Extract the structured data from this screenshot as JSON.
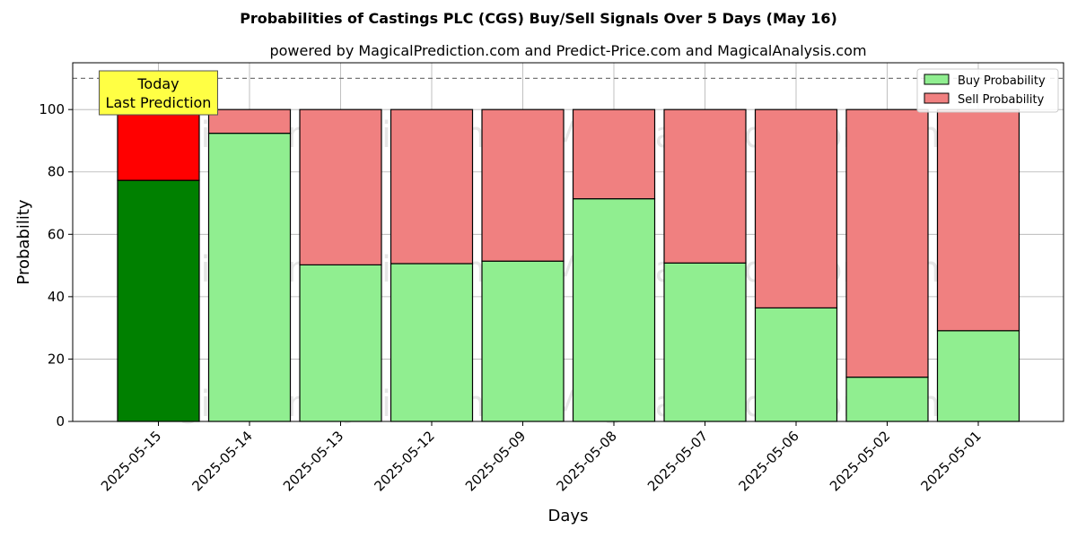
{
  "chart_data": {
    "type": "bar",
    "stacked": true,
    "title": "Probabilities of Castings PLC (CGS) Buy/Sell Signals Over 5 Days (May 16)",
    "subtitle": "powered by MagicalPrediction.com and Predict-Price.com and MagicalAnalysis.com",
    "xlabel": "Days",
    "ylabel": "Probability",
    "ylim": [
      0,
      115
    ],
    "yticks": [
      0,
      20,
      40,
      60,
      80,
      100
    ],
    "reference_line": 110,
    "grid": true,
    "legend_position": "top-right",
    "categories": [
      "2025-05-15",
      "2025-05-14",
      "2025-05-13",
      "2025-05-12",
      "2025-05-09",
      "2025-05-08",
      "2025-05-07",
      "2025-05-06",
      "2025-05-02",
      "2025-05-01"
    ],
    "series": [
      {
        "name": "Buy Probability",
        "values": [
          77.3,
          92.4,
          50.2,
          50.6,
          51.4,
          71.4,
          50.8,
          36.4,
          14.2,
          29.1
        ],
        "color": "#90ee90",
        "highlight_color": "#008000"
      },
      {
        "name": "Sell Probability",
        "values": [
          22.7,
          7.6,
          49.8,
          49.4,
          48.6,
          28.6,
          49.2,
          63.6,
          85.8,
          70.9
        ],
        "color": "#f08080",
        "highlight_color": "#ff0000"
      }
    ],
    "annotation": {
      "lines": [
        "Today",
        "Last Prediction"
      ],
      "category_index": 0,
      "color": "#ffff44"
    },
    "watermarks": [
      "MagicalAnalysis.com",
      "MagicalPrediction.com"
    ]
  }
}
